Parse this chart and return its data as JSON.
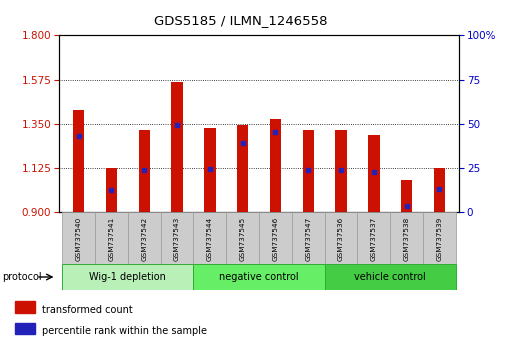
{
  "title": "GDS5185 / ILMN_1246558",
  "samples": [
    "GSM737540",
    "GSM737541",
    "GSM737542",
    "GSM737543",
    "GSM737544",
    "GSM737545",
    "GSM737546",
    "GSM737547",
    "GSM737536",
    "GSM737537",
    "GSM737538",
    "GSM737539"
  ],
  "bar_tops": [
    1.42,
    1.125,
    1.32,
    1.565,
    1.33,
    1.345,
    1.375,
    1.32,
    1.32,
    1.295,
    1.065,
    1.125
  ],
  "bar_bottom": 0.9,
  "blue_markers": [
    1.29,
    1.015,
    1.115,
    1.345,
    1.12,
    1.255,
    1.31,
    1.115,
    1.115,
    1.105,
    0.935,
    1.02
  ],
  "ylim_left": [
    0.9,
    1.8
  ],
  "ylim_right": [
    0,
    100
  ],
  "yticks_left": [
    0.9,
    1.125,
    1.35,
    1.575,
    1.8
  ],
  "yticks_right": [
    0,
    25,
    50,
    75,
    100
  ],
  "groups": [
    {
      "label": "Wig-1 depletion",
      "start": 0,
      "end": 3
    },
    {
      "label": "negative control",
      "start": 4,
      "end": 7
    },
    {
      "label": "vehicle control",
      "start": 8,
      "end": 11
    }
  ],
  "group_colors": [
    "#b8f0b8",
    "#66ee66",
    "#44cc44"
  ],
  "bar_color": "#cc1100",
  "blue_color": "#2222bb",
  "tick_label_color_left": "#cc1100",
  "tick_label_color_right": "#0000cc",
  "dotted_lines": [
    1.125,
    1.35,
    1.575
  ],
  "bar_width": 0.35
}
